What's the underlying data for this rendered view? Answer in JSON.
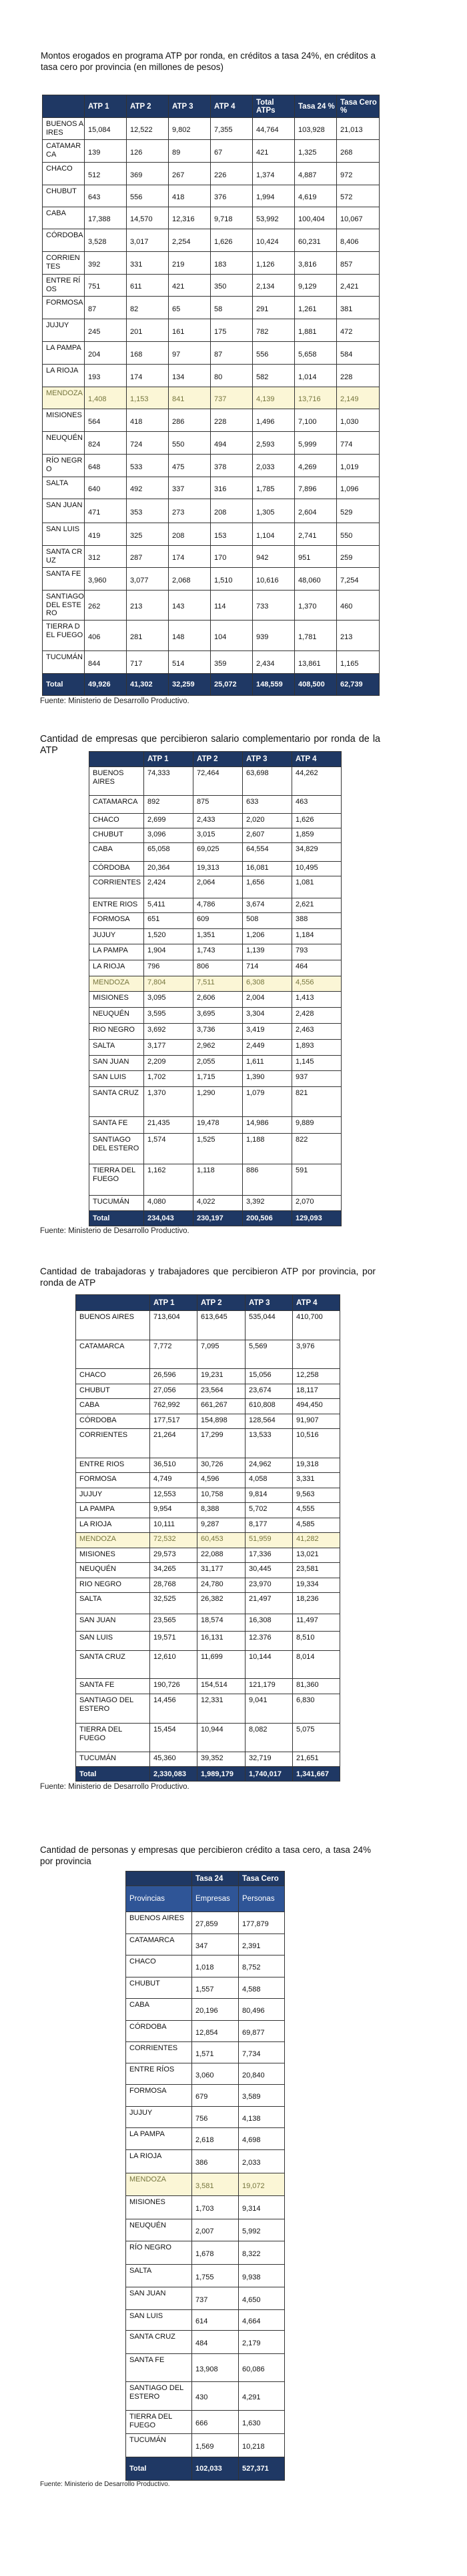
{
  "tables": [
    {
      "title": "Montos erogados en programa ATP por ronda, en créditos a tasa 24%, en créditos a tasa cero por provincia (en millones de pesos)",
      "columns": [
        "",
        "ATP 1",
        "ATP 2",
        "ATP 3",
        "ATP 4",
        "Total ATPs",
        "Tasa 24 %",
        "Tasa Cero %"
      ],
      "rows": [
        {
          "province": "BUENOS AIRES",
          "values": [
            "15,084",
            "12,522",
            "9,802",
            "7,355",
            "44,764",
            "103,928",
            "21,013"
          ]
        },
        {
          "province": "CATAMARCA",
          "values": [
            "139",
            "126",
            "89",
            "67",
            "421",
            "1,325",
            "268"
          ]
        },
        {
          "province": "CHACO",
          "values": [
            "512",
            "369",
            "267",
            "226",
            "1,374",
            "4,887",
            "972"
          ]
        },
        {
          "province": "CHUBUT",
          "values": [
            "643",
            "556",
            "418",
            "376",
            "1,994",
            "4,619",
            "572"
          ]
        },
        {
          "province": "CABA",
          "values": [
            "17,388",
            "14,570",
            "12,316",
            "9,718",
            "53,992",
            "100,404",
            "10,067"
          ]
        },
        {
          "province": "CÓRDOBA",
          "values": [
            "3,528",
            "3,017",
            "2,254",
            "1,626",
            "10,424",
            "60,231",
            "8,406"
          ]
        },
        {
          "province": "CORRIENTES",
          "values": [
            "392",
            "331",
            "219",
            "183",
            "1,126",
            "3,816",
            "857"
          ]
        },
        {
          "province": "ENTRE RÍOS",
          "values": [
            "751",
            "611",
            "421",
            "350",
            "2,134",
            "9,129",
            "2,421"
          ]
        },
        {
          "province": "FORMOSA",
          "values": [
            "87",
            "82",
            "65",
            "58",
            "291",
            "1,261",
            "381"
          ]
        },
        {
          "province": "JUJUY",
          "values": [
            "245",
            "201",
            "161",
            "175",
            "782",
            "1,881",
            "472"
          ]
        },
        {
          "province": "LA PAMPA",
          "values": [
            "204",
            "168",
            "97",
            "87",
            "556",
            "5,658",
            "584"
          ]
        },
        {
          "province": "LA RIOJA",
          "values": [
            "193",
            "174",
            "134",
            "80",
            "582",
            "1,014",
            "228"
          ]
        },
        {
          "province": "MENDOZA",
          "highlighted": true,
          "values": [
            "1,408",
            "1,153",
            "841",
            "737",
            "4,139",
            "13,716",
            "2,149"
          ]
        },
        {
          "province": "MISIONES",
          "values": [
            "564",
            "418",
            "286",
            "228",
            "1,496",
            "7,100",
            "1,030"
          ]
        },
        {
          "province": "NEUQUÉN",
          "values": [
            "824",
            "724",
            "550",
            "494",
            "2,593",
            "5,999",
            "774"
          ]
        },
        {
          "province": "RÍO NEGRO",
          "values": [
            "648",
            "533",
            "475",
            "378",
            "2,033",
            "4,269",
            "1,019"
          ]
        },
        {
          "province": "SALTA",
          "values": [
            "640",
            "492",
            "337",
            "316",
            "1,785",
            "7,896",
            "1,096"
          ]
        },
        {
          "province": "SAN JUAN",
          "values": [
            "471",
            "353",
            "273",
            "208",
            "1,305",
            "2,604",
            "529"
          ]
        },
        {
          "province": "SAN LUIS",
          "values": [
            "419",
            "325",
            "208",
            "153",
            "1,104",
            "2,741",
            "550"
          ]
        },
        {
          "province": "SANTA CRUZ",
          "values": [
            "312",
            "287",
            "174",
            "170",
            "942",
            "951",
            "259"
          ]
        },
        {
          "province": "SANTA FE",
          "values": [
            "3,960",
            "3,077",
            "2,068",
            "1,510",
            "10,616",
            "48,060",
            "7,254"
          ]
        },
        {
          "province": "SANTIAGO DEL ESTERO",
          "values": [
            "262",
            "213",
            "143",
            "114",
            "733",
            "1,370",
            "460"
          ]
        },
        {
          "province": "TIERRA DEL FUEGO",
          "values": [
            "406",
            "281",
            "148",
            "104",
            "939",
            "1,781",
            "213"
          ]
        },
        {
          "province": "TUCUMÁN",
          "values": [
            "844",
            "717",
            "514",
            "359",
            "2,434",
            "13,861",
            "1,165"
          ]
        }
      ],
      "total": {
        "label": "Total",
        "values": [
          "49,926",
          "41,302",
          "32,259",
          "25,072",
          "148,559",
          "408,500",
          "62,739"
        ]
      },
      "source": "Fuente: Ministerio de Desarrollo Productivo."
    },
    {
      "title": "Cantidad de empresas que percibieron salario complementario por ronda de la ATP",
      "columns": [
        "",
        "ATP 1",
        "ATP 2",
        "ATP 3",
        "ATP 4"
      ],
      "rows": [
        {
          "province": "BUENOS AIRES",
          "values": [
            "74,333",
            "72,464",
            "63,698",
            "44,262"
          ]
        },
        {
          "province": "CATAMARCA",
          "values": [
            "892",
            "875",
            "633",
            "463"
          ]
        },
        {
          "province": "CHACO",
          "values": [
            "2,699",
            "2,433",
            "2,020",
            "1,626"
          ]
        },
        {
          "province": "CHUBUT",
          "values": [
            "3,096",
            "3,015",
            "2,607",
            "1,859"
          ]
        },
        {
          "province": "CABA",
          "values": [
            "65,058",
            "69,025",
            "64,554",
            "34,829"
          ]
        },
        {
          "province": "CÓRDOBA",
          "values": [
            "20,364",
            "19,313",
            "16,081",
            "10,495"
          ]
        },
        {
          "province": "CORRIENTES",
          "values": [
            "2,424",
            "2,064",
            "1,656",
            "1,081"
          ]
        },
        {
          "province": "ENTRE RIOS",
          "values": [
            "5,411",
            "4,786",
            "3,674",
            "2,621"
          ]
        },
        {
          "province": "FORMOSA",
          "values": [
            "651",
            "609",
            "508",
            "388"
          ]
        },
        {
          "province": "JUJUY",
          "values": [
            "1,520",
            "1,351",
            "1,206",
            "1,184"
          ]
        },
        {
          "province": "LA PAMPA",
          "values": [
            "1,904",
            "1,743",
            "1,139",
            "793"
          ]
        },
        {
          "province": "LA RIOJA",
          "values": [
            "796",
            "806",
            "714",
            "464"
          ]
        },
        {
          "province": "MENDOZA",
          "highlighted": true,
          "values": [
            "7,804",
            "7,511",
            "6,308",
            "4,556"
          ]
        },
        {
          "province": "MISIONES",
          "values": [
            "3,095",
            "2,606",
            "2,004",
            "1,413"
          ]
        },
        {
          "province": "NEUQUÉN",
          "values": [
            "3,595",
            "3,695",
            "3,304",
            "2,428"
          ]
        },
        {
          "province": "RIO NEGRO",
          "values": [
            "3,692",
            "3,736",
            "3,419",
            "2,463"
          ]
        },
        {
          "province": "SALTA",
          "values": [
            "3,177",
            "2,962",
            "2,449",
            "1,893"
          ]
        },
        {
          "province": "SAN JUAN",
          "values": [
            "2,209",
            "2,055",
            "1,611",
            "1,145"
          ]
        },
        {
          "province": "SAN LUIS",
          "values": [
            "1,702",
            "1,715",
            "1,390",
            "937"
          ]
        },
        {
          "province": "SANTA CRUZ",
          "values": [
            "1,370",
            "1,290",
            "1,079",
            "821"
          ]
        },
        {
          "province": "SANTA FE",
          "values": [
            "21,435",
            "19,478",
            "14,986",
            "9,889"
          ]
        },
        {
          "province": "SANTIAGO DEL ESTERO",
          "values": [
            "1,574",
            "1,525",
            "1,188",
            "822"
          ]
        },
        {
          "province": "TIERRA DEL FUEGO",
          "values": [
            "1,162",
            "1,118",
            "886",
            "591"
          ]
        },
        {
          "province": "TUCUMÁN",
          "values": [
            "4,080",
            "4,022",
            "3,392",
            "2,070"
          ]
        }
      ],
      "total": {
        "label": "Total",
        "values": [
          "234,043",
          "230,197",
          "200,506",
          "129,093"
        ]
      },
      "source": "Fuente: Ministerio de Desarrollo Productivo."
    },
    {
      "title": "Cantidad de trabajadoras y trabajadores que percibieron ATP por provincia, por ronda de ATP",
      "columns": [
        "",
        "ATP 1",
        "ATP 2",
        "ATP 3",
        "ATP 4"
      ],
      "rows": [
        {
          "province": "BUENOS AIRES",
          "values": [
            "713,604",
            "613,645",
            "535,044",
            "410,700"
          ]
        },
        {
          "province": "CATAMARCA",
          "values": [
            "7,772",
            "7,095",
            "5,569",
            "3,976"
          ]
        },
        {
          "province": "CHACO",
          "values": [
            "26,596",
            "19,231",
            "15,056",
            "12,258"
          ]
        },
        {
          "province": "CHUBUT",
          "values": [
            "27,056",
            "23,564",
            "23,674",
            "18,117"
          ]
        },
        {
          "province": "CABA",
          "values": [
            "762,992",
            "661,267",
            "610,808",
            "494,450"
          ]
        },
        {
          "province": "CÓRDOBA",
          "values": [
            "177,517",
            "154,898",
            "128,564",
            "91,907"
          ]
        },
        {
          "province": "CORRIENTES",
          "values": [
            "21,264",
            "17,299",
            "13,533",
            "10,516"
          ]
        },
        {
          "province": "ENTRE RIOS",
          "values": [
            "36,510",
            "30,726",
            "24,962",
            "19,318"
          ]
        },
        {
          "province": "FORMOSA",
          "values": [
            "4,749",
            "4,596",
            "4,058",
            "3,331"
          ]
        },
        {
          "province": "JUJUY",
          "values": [
            "12,553",
            "10,758",
            "9,814",
            "9,563"
          ]
        },
        {
          "province": "LA PAMPA",
          "values": [
            "9,954",
            "8,388",
            "5,702",
            "4,555"
          ]
        },
        {
          "province": "LA RIOJA",
          "values": [
            "10,111",
            "9,287",
            "8,177",
            "4,585"
          ]
        },
        {
          "province": "MENDOZA",
          "highlighted": true,
          "values": [
            "72,532",
            "60,453",
            "51,959",
            "41,282"
          ]
        },
        {
          "province": "MISIONES",
          "values": [
            "29,573",
            "22,088",
            "17,336",
            "13,021"
          ]
        },
        {
          "province": "NEUQUÉN",
          "values": [
            "34,265",
            "31,177",
            "30,445",
            "23,581"
          ]
        },
        {
          "province": "RIO NEGRO",
          "values": [
            "28,768",
            "24,780",
            "23,970",
            "19,334"
          ]
        },
        {
          "province": "SALTA",
          "values": [
            "32,525",
            "26,382",
            "21,497",
            "18,236"
          ]
        },
        {
          "province": "SAN JUAN",
          "values": [
            "23,565",
            "18,574",
            "16,308",
            "11,497"
          ]
        },
        {
          "province": "SAN LUIS",
          "values": [
            "19,571",
            "16,131",
            "12.376",
            "8,510"
          ]
        },
        {
          "province": "SANTA CRUZ",
          "values": [
            "12,610",
            "11,699",
            "10,144",
            "8,014"
          ]
        },
        {
          "province": "SANTA FE",
          "values": [
            "190,726",
            "154,514",
            "121,179",
            "81,360"
          ]
        },
        {
          "province": "SANTIAGO DEL ESTERO",
          "values": [
            "14,456",
            "12,331",
            "9,041",
            "6,830"
          ]
        },
        {
          "province": "TIERRA DEL FUEGO",
          "values": [
            "15,454",
            "10,944",
            "8,082",
            "5,075"
          ]
        },
        {
          "province": "TUCUMÁN",
          "values": [
            "45,360",
            "39,352",
            "32,719",
            "21,651"
          ]
        }
      ],
      "total": {
        "label": "Total",
        "values": [
          "2,330,083",
          "1,989,179",
          "1,740,017",
          "1,341,667"
        ]
      },
      "source": "Fuente: Ministerio de Desarrollo Productivo."
    },
    {
      "title": "Cantidad de personas y empresas que percibieron crédito a tasa cero, a tasa 24% por provincia",
      "header_top": [
        "",
        "Tasa 24",
        "Tasa Cero"
      ],
      "columns": [
        "Provincias",
        "Empresas",
        "Personas"
      ],
      "rows": [
        {
          "province": "BUENOS AIRES",
          "values": [
            "27,859",
            "177,879"
          ]
        },
        {
          "province": "CATAMARCA",
          "values": [
            "347",
            "2,391"
          ]
        },
        {
          "province": "CHACO",
          "values": [
            "1,018",
            "8,752"
          ]
        },
        {
          "province": "CHUBUT",
          "values": [
            "1,557",
            "4,588"
          ]
        },
        {
          "province": "CABA",
          "values": [
            "20,196",
            "80,496"
          ]
        },
        {
          "province": "CÓRDOBA",
          "values": [
            "12,854",
            "69,877"
          ]
        },
        {
          "province": "CORRIENTES",
          "values": [
            "1,571",
            "7,734"
          ]
        },
        {
          "province": "ENTRE RÍOS",
          "values": [
            "3,060",
            "20,840"
          ]
        },
        {
          "province": "FORMOSA",
          "values": [
            "679",
            "3,589"
          ]
        },
        {
          "province": "JUJUY",
          "values": [
            "756",
            "4,138"
          ]
        },
        {
          "province": "LA PAMPA",
          "values": [
            "2,618",
            "4,698"
          ]
        },
        {
          "province": "LA RIOJA",
          "values": [
            "386",
            "2,033"
          ]
        },
        {
          "province": "MENDOZA",
          "highlighted": true,
          "values": [
            "3,581",
            "19,072"
          ]
        },
        {
          "province": "MISIONES",
          "values": [
            "1,703",
            "9,314"
          ]
        },
        {
          "province": "NEUQUÉN",
          "values": [
            "2,007",
            "5,992"
          ]
        },
        {
          "province": "RÍO NEGRO",
          "values": [
            "1,678",
            "8,322"
          ]
        },
        {
          "province": "SALTA",
          "values": [
            "1,755",
            "9,938"
          ]
        },
        {
          "province": "SAN JUAN",
          "values": [
            "737",
            "4,650"
          ]
        },
        {
          "province": "SAN LUIS",
          "values": [
            "614",
            "4,664"
          ]
        },
        {
          "province": "SANTA CRUZ",
          "values": [
            "484",
            "2,179"
          ]
        },
        {
          "province": "SANTA FE",
          "values": [
            "13,908",
            "60,086"
          ]
        },
        {
          "province": "SANTIAGO DEL ESTERO",
          "values": [
            "430",
            "4,291"
          ]
        },
        {
          "province": "TIERRA DEL FUEGO",
          "values": [
            "666",
            "1,630"
          ]
        },
        {
          "province": "TUCUMÁN",
          "values": [
            "1,569",
            "10,218"
          ]
        }
      ],
      "total": {
        "label": "Total",
        "values": [
          "102,033",
          "527,371"
        ]
      },
      "source": "Fuente: Ministerio de Desarrollo Productivo."
    }
  ],
  "colors": {
    "header": "#1f3864",
    "subheader": "#2f5597",
    "highlight": "#fbf6d6"
  }
}
